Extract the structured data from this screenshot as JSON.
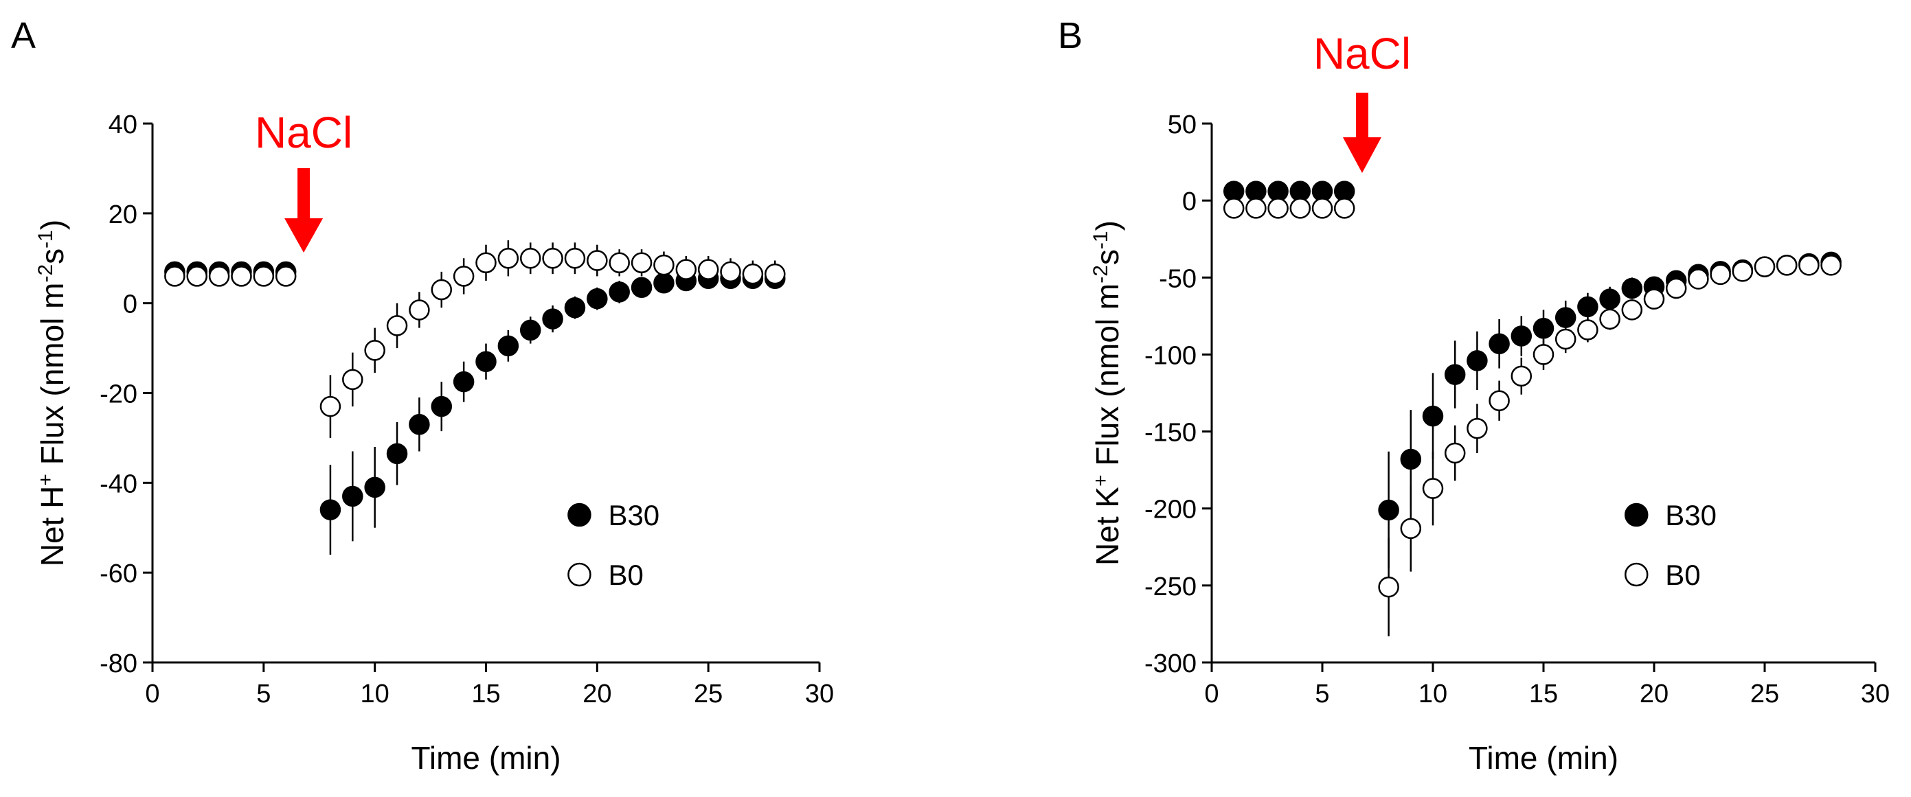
{
  "chart_data": [
    {
      "panel_label": "A",
      "type": "scatter",
      "title": "",
      "xlabel": "Time (min)",
      "ylabel": {
        "pre": "Net H",
        "sup1": "+",
        "mid": " Flux (nmol m",
        "sup2": "-2",
        "mid2": "s",
        "sup3": "-1",
        "post": ")"
      },
      "xlim": [
        0,
        30
      ],
      "ylim": [
        -80,
        40
      ],
      "xticks": [
        0,
        5,
        10,
        15,
        20,
        25,
        30
      ],
      "yticks": [
        -80,
        -60,
        -40,
        -20,
        0,
        20,
        40
      ],
      "xtick_labels": [
        "0",
        "5",
        "10",
        "15",
        "20",
        "25",
        "30"
      ],
      "ytick_labels": [
        "-80",
        "-60",
        "-40",
        "-20",
        "0",
        "20",
        "40"
      ],
      "legend": {
        "location": "lower-right",
        "entries": [
          "B30",
          "B0"
        ]
      },
      "annotation": {
        "text": "NaCl",
        "x": 6.8,
        "color": "#ff0000"
      },
      "series": [
        {
          "name": "B30",
          "marker": "filled-circle",
          "x": [
            1,
            2,
            3,
            4,
            5,
            6,
            8,
            9,
            10,
            11,
            12,
            13,
            14,
            15,
            16,
            17,
            18,
            19,
            20,
            21,
            22,
            23,
            24,
            25,
            26,
            27,
            28
          ],
          "y": [
            7,
            7,
            7,
            7,
            7,
            7,
            -46,
            -43,
            -41,
            -33.5,
            -27,
            -23,
            -17.5,
            -13,
            -9.5,
            -6,
            -3.5,
            -1,
            1,
            2.5,
            3.5,
            4.5,
            5,
            5.5,
            5.5,
            5.5,
            5.5
          ],
          "err": [
            2,
            2,
            2,
            2,
            2,
            2,
            10,
            10,
            9,
            7,
            6,
            5.5,
            4.5,
            4,
            3.5,
            3,
            3,
            2.5,
            2.5,
            2.5,
            2,
            2,
            2,
            2,
            2,
            2,
            2
          ]
        },
        {
          "name": "B0",
          "marker": "open-circle",
          "x": [
            1,
            2,
            3,
            4,
            5,
            6,
            8,
            9,
            10,
            11,
            12,
            13,
            14,
            15,
            16,
            17,
            18,
            19,
            20,
            21,
            22,
            23,
            24,
            25,
            26,
            27,
            28
          ],
          "y": [
            6,
            6,
            6,
            6,
            6,
            6,
            -23,
            -17,
            -10.5,
            -5,
            -1.5,
            3,
            6,
            9,
            10,
            10,
            10,
            10,
            9.5,
            9,
            9,
            8.5,
            7.5,
            7.5,
            7,
            6.5,
            6.5
          ],
          "err": [
            2,
            2,
            2,
            2,
            2,
            2,
            7,
            6,
            5,
            5,
            4,
            4,
            4,
            4,
            4,
            3.5,
            3.5,
            3.5,
            3.5,
            3,
            3,
            3,
            3,
            3,
            3,
            3,
            3
          ]
        }
      ]
    },
    {
      "panel_label": "B",
      "type": "scatter",
      "title": "",
      "xlabel": "Time (min)",
      "ylabel": {
        "pre": "Net K",
        "sup1": "+",
        "mid": " Flux (nmol m",
        "sup2": "-2",
        "mid2": "s",
        "sup3": "-1",
        "post": ")"
      },
      "xlim": [
        0,
        30
      ],
      "ylim": [
        -300,
        50
      ],
      "xticks": [
        0,
        5,
        10,
        15,
        20,
        25,
        30
      ],
      "yticks": [
        -300,
        -250,
        -200,
        -150,
        -100,
        -50,
        0,
        50
      ],
      "xtick_labels": [
        "0",
        "5",
        "10",
        "15",
        "20",
        "25",
        "30"
      ],
      "ytick_labels": [
        "-300",
        "-250",
        "-200",
        "-150",
        "-100",
        "-50",
        "0",
        "50"
      ],
      "legend": {
        "location": "lower-right",
        "entries": [
          "B30",
          "B0"
        ]
      },
      "annotation": {
        "text": "NaCl",
        "x": 6.8,
        "color": "#ff0000"
      },
      "series": [
        {
          "name": "B30",
          "marker": "filled-circle",
          "x": [
            1,
            2,
            3,
            4,
            5,
            6,
            8,
            9,
            10,
            11,
            12,
            13,
            14,
            15,
            16,
            17,
            18,
            19,
            20,
            21,
            22,
            23,
            24,
            25,
            26,
            27,
            28
          ],
          "y": [
            6,
            6,
            6,
            6,
            6,
            6,
            -201,
            -168,
            -140,
            -113,
            -104,
            -93,
            -88,
            -83,
            -76,
            -69,
            -64,
            -57,
            -56,
            -52,
            -48,
            -46,
            -45,
            -43,
            -42,
            -41,
            -40
          ],
          "err": [
            3,
            3,
            3,
            3,
            3,
            3,
            38,
            32,
            28,
            22,
            19,
            16,
            13,
            12,
            11,
            9,
            8,
            7,
            6,
            5,
            5,
            5,
            4,
            4,
            4,
            4,
            4
          ]
        },
        {
          "name": "B0",
          "marker": "open-circle",
          "x": [
            1,
            2,
            3,
            4,
            5,
            6,
            8,
            9,
            10,
            11,
            12,
            13,
            14,
            15,
            16,
            17,
            18,
            19,
            20,
            21,
            22,
            23,
            24,
            25,
            26,
            27,
            28
          ],
          "y": [
            -5,
            -5,
            -5,
            -5,
            -5,
            -5,
            -251,
            -213,
            -187,
            -164,
            -148,
            -130,
            -114,
            -100,
            -90,
            -84,
            -77,
            -71,
            -64,
            -57,
            -51,
            -48,
            -46,
            -43,
            -42,
            -42,
            -42
          ],
          "err": [
            3,
            3,
            3,
            3,
            3,
            3,
            32,
            28,
            24,
            18,
            16,
            13,
            12,
            10,
            9,
            8,
            7,
            6,
            6,
            5,
            5,
            4,
            4,
            4,
            4,
            4,
            4
          ]
        }
      ]
    }
  ]
}
